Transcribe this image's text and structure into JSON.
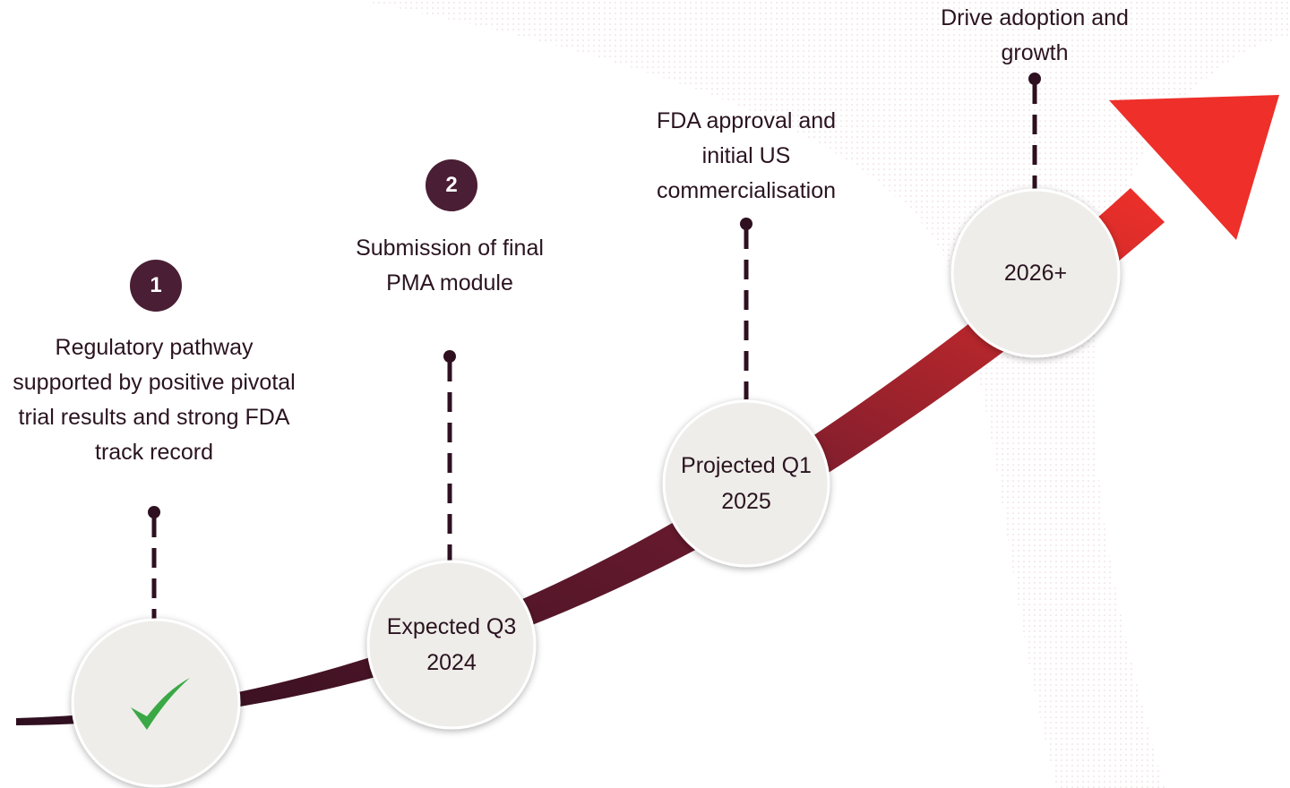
{
  "milestones": [
    {
      "badge": "1",
      "description": "Regulatory pathway supported by positive pivotal trial results and strong FDA track record"
    },
    {
      "badge": "2",
      "description": "Submission of final PMA module",
      "status": "Expected Q3 2024"
    },
    {
      "description": "FDA approval and initial US commercialisation",
      "status": "Projected Q1 2025"
    },
    {
      "description": "Drive adoption and growth",
      "status": "2026+"
    }
  ]
}
